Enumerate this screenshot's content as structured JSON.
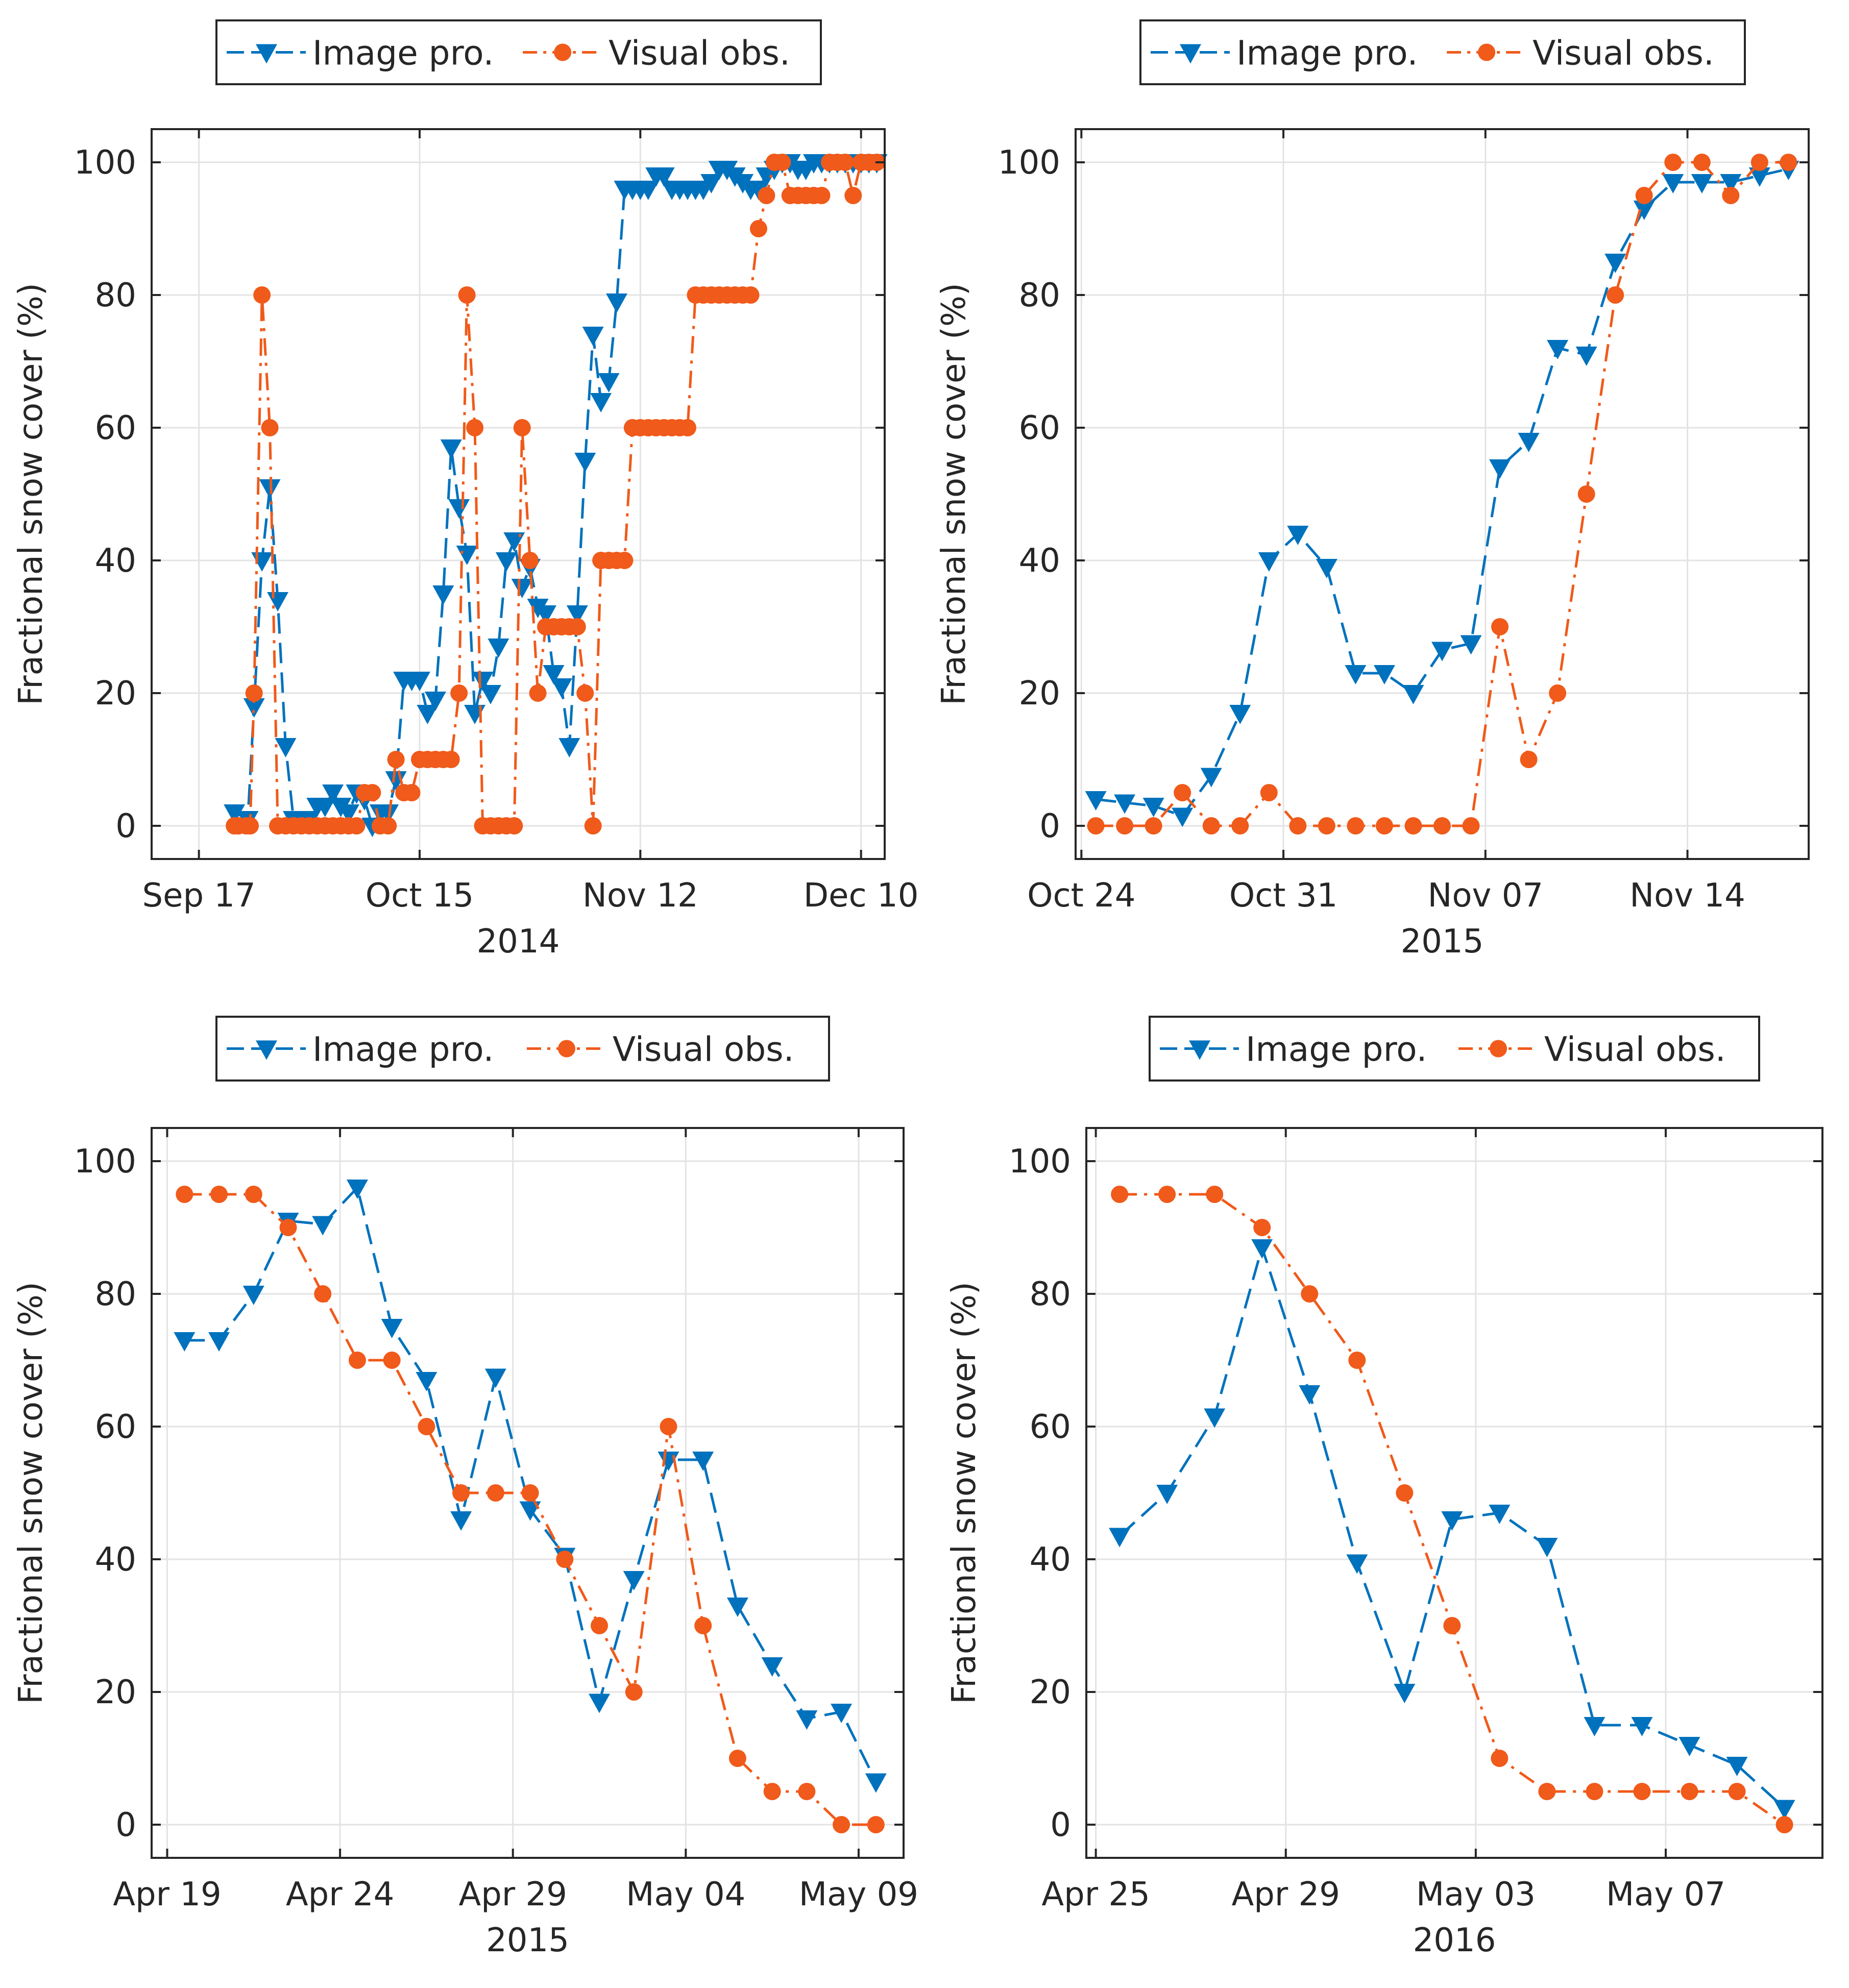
{
  "chart_data": [
    {
      "type": "line",
      "id": "2014-autumn",
      "xlabel": "2014",
      "ylabel": "Fractional snow cover (%)",
      "xlim": [
        -6,
        87
      ],
      "ylim": [
        -5,
        105
      ],
      "xticks": [
        {
          "v": 0,
          "label": "Sep 17"
        },
        {
          "v": 28,
          "label": "Oct 15"
        },
        {
          "v": 56,
          "label": "Nov 12"
        },
        {
          "v": 84,
          "label": "Dec 10"
        }
      ],
      "yticks": [
        0,
        20,
        40,
        60,
        80,
        100
      ],
      "legend_position": "top",
      "grid": true,
      "series": [
        {
          "name": "Image pro.",
          "color": "#0072BD",
          "marker": "triangle-down",
          "dash": "dashed",
          "x": [
            4.5,
            6.2,
            7,
            8,
            9,
            10,
            11,
            12,
            13,
            14,
            15,
            16,
            17,
            18,
            19,
            20,
            21,
            22,
            23,
            24,
            25,
            26,
            27,
            28,
            29,
            30,
            31,
            32,
            33,
            34,
            35,
            36,
            37,
            38,
            39,
            40,
            41,
            42,
            43,
            44,
            45,
            46,
            47,
            48,
            49,
            50,
            51,
            52,
            53,
            54,
            55,
            56,
            57,
            58,
            59,
            60,
            61,
            62,
            63,
            64,
            65,
            66,
            67,
            68,
            69,
            70,
            71,
            72,
            73,
            74,
            75,
            76,
            77,
            78,
            79,
            80,
            81,
            82,
            83,
            84,
            85,
            86
          ],
          "y": [
            2,
            1,
            18,
            40,
            51,
            34,
            12,
            1,
            1,
            1,
            3,
            3,
            5,
            3,
            2,
            5,
            4,
            0,
            2,
            2,
            7,
            22,
            22,
            22,
            17,
            19,
            35,
            57,
            48,
            41,
            17,
            22,
            20,
            27,
            40,
            43,
            36,
            39,
            33,
            32,
            23,
            21,
            12,
            32,
            55,
            74,
            64,
            67,
            79,
            96,
            96,
            96,
            96,
            98,
            98,
            96,
            96,
            96,
            96,
            96,
            97,
            99,
            99,
            98,
            97,
            96,
            96,
            98,
            99,
            100,
            100,
            99,
            99,
            100,
            100,
            100,
            100,
            100,
            100,
            100,
            100,
            100
          ]
        },
        {
          "name": "Visual obs.",
          "color": "#F05A1A",
          "marker": "circle",
          "dash": "dashdot",
          "x": [
            4.5,
            5,
            6,
            6.5,
            7,
            8,
            9,
            10,
            11,
            12,
            13,
            14,
            15,
            16,
            17,
            18,
            19,
            20,
            21,
            22,
            23,
            24,
            25,
            26,
            27,
            28,
            29,
            30,
            31,
            32,
            33,
            34,
            35,
            36,
            37,
            38,
            39,
            40,
            41,
            42,
            43,
            44,
            45,
            46,
            47,
            48,
            49,
            50,
            51,
            52,
            53,
            54,
            55,
            56,
            57,
            58,
            59,
            60,
            61,
            62,
            63,
            64,
            65,
            66,
            67,
            68,
            69,
            70,
            71,
            72,
            73,
            74,
            75,
            76,
            77,
            78,
            79,
            80,
            81,
            82,
            83,
            84,
            85,
            86
          ],
          "y": [
            0,
            0,
            0,
            0,
            20,
            80,
            60,
            0,
            0,
            0,
            0,
            0,
            0,
            0,
            0,
            0,
            0,
            0,
            5,
            5,
            0,
            0,
            10,
            5,
            5,
            10,
            10,
            10,
            10,
            10,
            20,
            80,
            60,
            0,
            0,
            0,
            0,
            0,
            60,
            40,
            20,
            30,
            30,
            30,
            30,
            30,
            20,
            0,
            40,
            40,
            40,
            40,
            60,
            60,
            60,
            60,
            60,
            60,
            60,
            60,
            80,
            80,
            80,
            80,
            80,
            80,
            80,
            80,
            90,
            95,
            100,
            100,
            95,
            95,
            95,
            95,
            95,
            100,
            100,
            100,
            95,
            100,
            100,
            100
          ]
        }
      ]
    },
    {
      "type": "line",
      "id": "2015-autumn",
      "xlabel": "2015",
      "ylabel": "Fractional snow cover (%)",
      "xlim": [
        -0.2,
        25.2
      ],
      "ylim": [
        -5,
        105
      ],
      "xticks": [
        {
          "v": 0,
          "label": "Oct 24"
        },
        {
          "v": 7,
          "label": "Oct 31"
        },
        {
          "v": 14,
          "label": "Nov 07"
        },
        {
          "v": 21,
          "label": "Nov 14"
        }
      ],
      "yticks": [
        0,
        20,
        40,
        60,
        80,
        100
      ],
      "legend_position": "top",
      "grid": true,
      "series": [
        {
          "name": "Image pro.",
          "color": "#0072BD",
          "marker": "triangle-down",
          "dash": "dashed",
          "x": [
            0.5,
            1.5,
            2.5,
            3.5,
            4.5,
            5.5,
            6.5,
            7.5,
            8.5,
            9.5,
            10.5,
            11.5,
            12.5,
            13.5,
            14.5,
            15.5,
            16.5,
            17.5,
            18.5,
            19.5,
            20.5,
            21.5,
            22.5,
            23.5,
            24.5
          ],
          "y": [
            4,
            3.5,
            3,
            1.5,
            7.5,
            17,
            40,
            44,
            39,
            23,
            23,
            20,
            26.5,
            27.5,
            54,
            58,
            72,
            71,
            85,
            93,
            97,
            97,
            97,
            98,
            99
          ]
        },
        {
          "name": "Visual obs.",
          "color": "#F05A1A",
          "marker": "circle",
          "dash": "dashdot",
          "x": [
            0.5,
            1.5,
            2.5,
            3.5,
            4.5,
            5.5,
            6.5,
            7.5,
            8.5,
            9.5,
            10.5,
            11.5,
            12.5,
            13.5,
            14.5,
            15.5,
            16.5,
            17.5,
            18.5,
            19.5,
            20.5,
            21.5,
            22.5,
            23.5,
            24.5
          ],
          "y": [
            0,
            0,
            0,
            5,
            0,
            0,
            5,
            0,
            0,
            0,
            0,
            0,
            0,
            0,
            30,
            10,
            20,
            50,
            80,
            95,
            100,
            100,
            95,
            100,
            100
          ]
        }
      ]
    },
    {
      "type": "line",
      "id": "2015-spring",
      "xlabel": "2015",
      "ylabel": "Fractional snow cover (%)",
      "xlim": [
        -0.45,
        21.3
      ],
      "ylim": [
        -5,
        105
      ],
      "xticks": [
        {
          "v": 0,
          "label": "Apr 19"
        },
        {
          "v": 5,
          "label": "Apr 24"
        },
        {
          "v": 10,
          "label": "Apr 29"
        },
        {
          "v": 15,
          "label": "May 04"
        },
        {
          "v": 20,
          "label": "May 09"
        }
      ],
      "yticks": [
        0,
        20,
        40,
        60,
        80,
        100
      ],
      "legend_position": "top",
      "grid": true,
      "series": [
        {
          "name": "Image pro.",
          "color": "#0072BD",
          "marker": "triangle-down",
          "dash": "dashed",
          "x": [
            0.5,
            1.5,
            2.5,
            3.5,
            4.5,
            5.5,
            6.5,
            7.5,
            8.5,
            9.5,
            10.5,
            11.5,
            12.5,
            13.5,
            14.5,
            15.5,
            16.5,
            17.5,
            18.5,
            19.5,
            20.5
          ],
          "y": [
            73,
            73,
            80,
            91,
            90.5,
            96,
            75,
            67,
            46,
            67.5,
            47.5,
            40.5,
            18.5,
            37,
            55,
            55,
            33,
            24,
            16,
            17,
            6.5
          ]
        },
        {
          "name": "Visual obs.",
          "color": "#F05A1A",
          "marker": "circle",
          "dash": "dashdot",
          "x": [
            0.5,
            1.5,
            2.5,
            3.5,
            4.5,
            5.5,
            6.5,
            7.5,
            8.5,
            9.5,
            10.5,
            11.5,
            12.5,
            13.5,
            14.5,
            15.5,
            16.5,
            17.5,
            18.5,
            19.5,
            20.5
          ],
          "y": [
            95,
            95,
            95,
            90,
            80,
            70,
            70,
            60,
            50,
            50,
            50,
            40,
            30,
            20,
            60,
            30,
            10,
            5,
            5,
            0,
            0
          ]
        }
      ]
    },
    {
      "type": "line",
      "id": "2016-spring",
      "xlabel": "2016",
      "ylabel": "Fractional snow cover (%)",
      "xlim": [
        -0.2,
        15.3
      ],
      "ylim": [
        -5,
        105
      ],
      "xticks": [
        {
          "v": 0,
          "label": "Apr 25"
        },
        {
          "v": 4,
          "label": "Apr 29"
        },
        {
          "v": 8,
          "label": "May 03"
        },
        {
          "v": 12,
          "label": "May 07"
        }
      ],
      "yticks": [
        0,
        20,
        40,
        60,
        80,
        100
      ],
      "legend_position": "top",
      "grid": true,
      "series": [
        {
          "name": "Image pro.",
          "color": "#0072BD",
          "marker": "triangle-down",
          "dash": "dashed",
          "x": [
            0.5,
            1.5,
            2.5,
            3.5,
            4.5,
            5.5,
            6.5,
            7.5,
            8.5,
            9.5,
            10.5,
            11.5,
            12.5,
            13.5,
            14.5
          ],
          "y": [
            43.5,
            50,
            61.5,
            87,
            65,
            39.5,
            20,
            46,
            47,
            42,
            15,
            15,
            12,
            9,
            2.5
          ]
        },
        {
          "name": "Visual obs.",
          "color": "#F05A1A",
          "marker": "circle",
          "dash": "dashdot",
          "x": [
            0.5,
            1.5,
            2.5,
            3.5,
            4.5,
            5.5,
            6.5,
            7.5,
            8.5,
            9.5,
            10.5,
            11.5,
            12.5,
            13.5,
            14.5
          ],
          "y": [
            95,
            95,
            95,
            90,
            80,
            70,
            50,
            30,
            10,
            5,
            5,
            5,
            5,
            5,
            0
          ]
        }
      ]
    }
  ]
}
